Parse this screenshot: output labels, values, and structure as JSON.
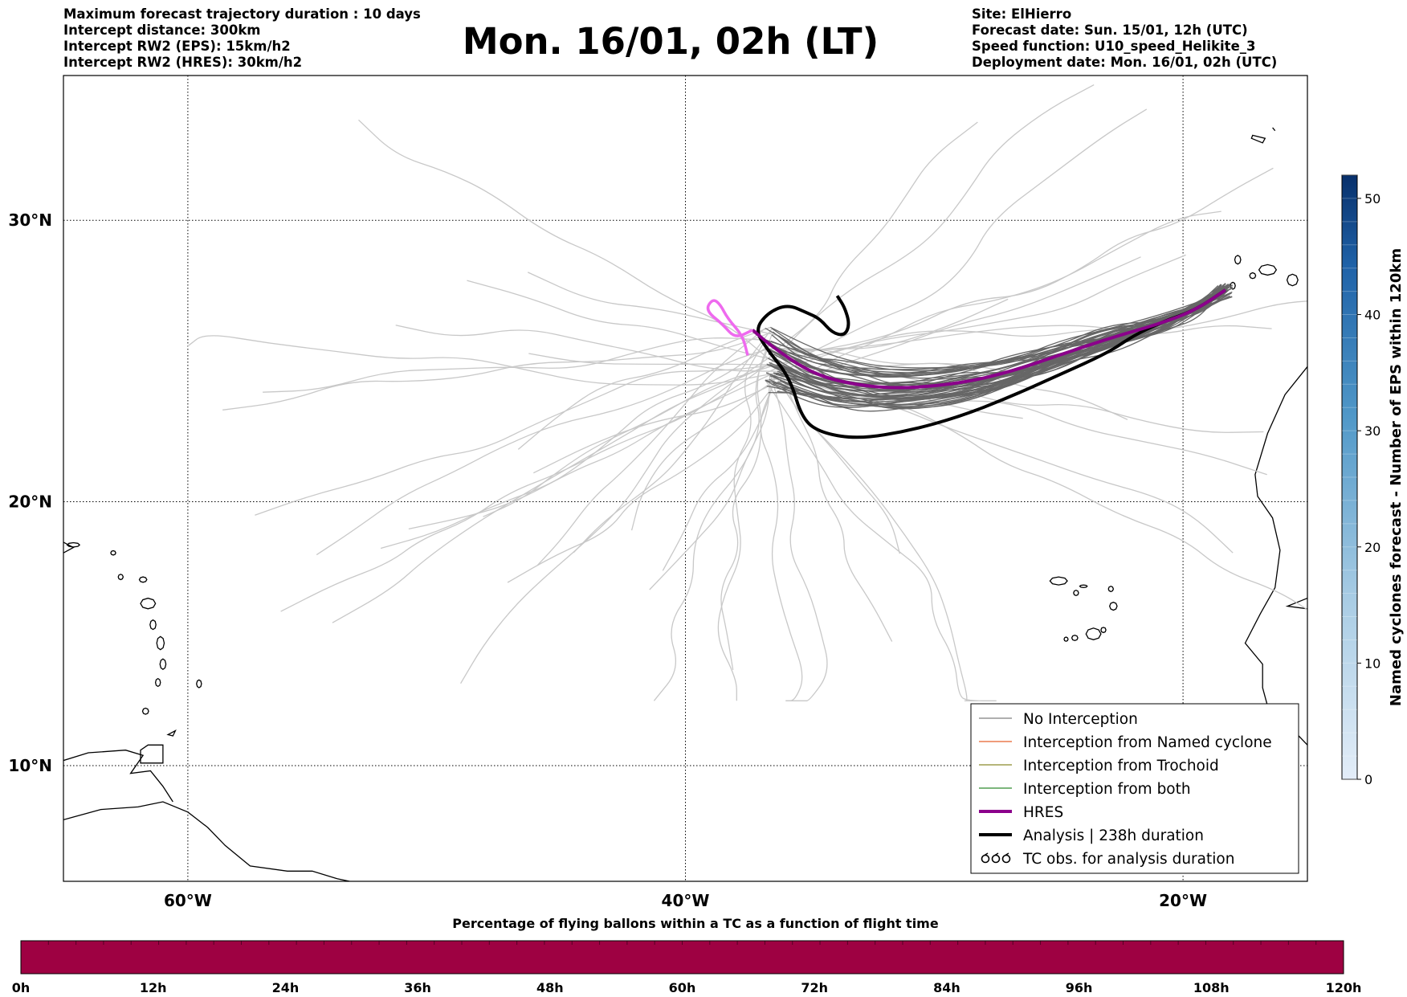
{
  "header": {
    "left_lines": [
      "Maximum forecast trajectory duration : 10 days",
      "Intercept distance: 300km",
      "Intercept RW2 (EPS):  15km/h2",
      "Intercept RW2 (HRES): 30km/h2"
    ],
    "right_lines": [
      "Site: ElHierro",
      "Forecast date: Sun. 15/01, 12h (UTC)",
      "Speed function: U10_speed_Helikite_3",
      "Deployment date: Mon. 16/01, 02h (UTC)"
    ],
    "title": "Mon. 16/01, 02h (LT)"
  },
  "map": {
    "extent": {
      "lon_min": -65,
      "lon_max": -15,
      "lat_min": 5.5,
      "lat_max": 34.8
    },
    "meridians": [
      -60,
      -40,
      -20
    ],
    "parallels": [
      10,
      20,
      30
    ],
    "lon_labels": [
      "60°W",
      "40°W",
      "20°W"
    ],
    "lat_labels": [
      "10°N",
      "20°N",
      "30°N"
    ],
    "colors": {
      "eps_light": "#c8c8c8",
      "eps_dark": "#666666",
      "hres": "#8b008b",
      "hres_start": "#ee6aee",
      "analysis": "#000000",
      "coast": "#000000"
    }
  },
  "legend": {
    "items": [
      {
        "label": "No Interception",
        "color": "#7f7f7f",
        "style": "thin"
      },
      {
        "label": "Interception from Named cyclone",
        "color": "#e8622c",
        "style": "thin"
      },
      {
        "label": "Interception from Trochoid",
        "color": "#8b8b2a",
        "style": "thin"
      },
      {
        "label": "Interception from both",
        "color": "#2e8b2e",
        "style": "thin"
      },
      {
        "label": "HRES",
        "color": "#8b008b",
        "style": "thick"
      },
      {
        "label": "Analysis | 238h duration",
        "color": "#000000",
        "style": "thick"
      },
      {
        "label": "TC obs. for analysis duration",
        "color": "#000000",
        "style": "symbol"
      }
    ]
  },
  "colorbar_right": {
    "label": "Named cyclones forecast - Number of EPS within 120km",
    "range": [
      0,
      52
    ],
    "ticks": [
      "0",
      "10",
      "20",
      "30",
      "40",
      "50"
    ],
    "color_low": "#e3edf8",
    "color_high": "#08306b"
  },
  "colorbar_bottom": {
    "label": "Percentage of flying ballons within a TC as a function of flight time",
    "ticks": [
      "0h",
      "12h",
      "24h",
      "36h",
      "48h",
      "60h",
      "72h",
      "84h",
      "96h",
      "108h",
      "120h"
    ],
    "segments": 48,
    "color": "#9e0142"
  },
  "tracks": {
    "hres": [
      [
        -18.3,
        27.6
      ],
      [
        -19.5,
        26.9
      ],
      [
        -21,
        26.4
      ],
      [
        -23,
        25.9
      ],
      [
        -25,
        25.3
      ],
      [
        -27,
        24.7
      ],
      [
        -29,
        24.3
      ],
      [
        -31.5,
        24.1
      ],
      [
        -33.5,
        24.3
      ],
      [
        -35,
        24.7
      ],
      [
        -36.5,
        25.6
      ],
      [
        -37.3,
        26.2
      ]
    ],
    "hres_start": [
      [
        -37.3,
        26.2
      ],
      [
        -38,
        25.9
      ],
      [
        -38.5,
        26.4
      ],
      [
        -39.2,
        26.9
      ],
      [
        -38.9,
        27.3
      ],
      [
        -38.6,
        27.1
      ],
      [
        -38.3,
        26.6
      ],
      [
        -37.7,
        26.0
      ],
      [
        -37.5,
        25.3
      ]
    ],
    "analysis": [
      [
        -18.3,
        27.6
      ],
      [
        -19.5,
        26.9
      ],
      [
        -20.8,
        26.5
      ],
      [
        -22,
        26
      ],
      [
        -23,
        25.4
      ],
      [
        -25,
        24.6
      ],
      [
        -27,
        23.8
      ],
      [
        -29,
        23.1
      ],
      [
        -31,
        22.6
      ],
      [
        -33,
        22.3
      ],
      [
        -34.5,
        22.5
      ],
      [
        -35.3,
        23
      ],
      [
        -35.8,
        24.5
      ],
      [
        -36.7,
        25.5
      ],
      [
        -37.2,
        26.2
      ],
      [
        -36.7,
        26.8
      ],
      [
        -35.9,
        27.1
      ],
      [
        -35.1,
        26.8
      ],
      [
        -34.6,
        26.6
      ],
      [
        -34.1,
        26.1
      ],
      [
        -33.6,
        26
      ],
      [
        -33.4,
        26.4
      ],
      [
        -33.6,
        27
      ],
      [
        -33.9,
        27.4
      ]
    ]
  }
}
